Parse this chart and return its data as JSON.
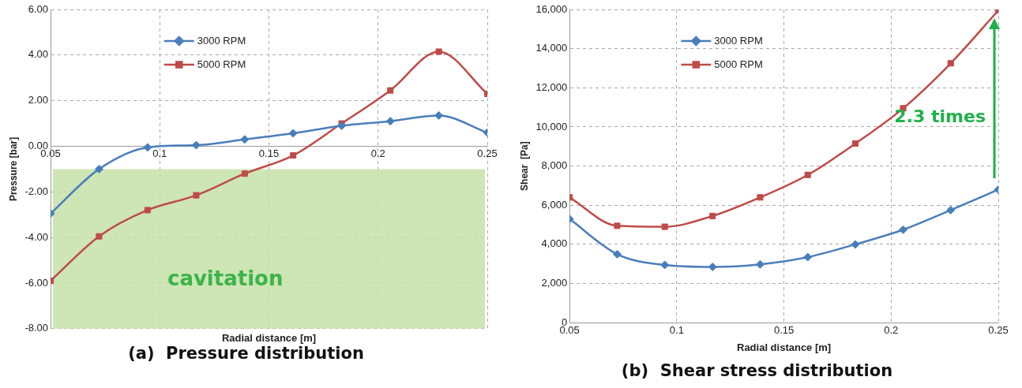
{
  "chart_data": [
    {
      "type": "line",
      "title": "(a)  Pressure distribution",
      "xlabel": "Radial distance [m]",
      "ylabel": "Pressure [bar]",
      "x": [
        0.05,
        0.0722,
        0.0944,
        0.1167,
        0.1389,
        0.1611,
        0.1833,
        0.2056,
        0.2278,
        0.25
      ],
      "series": [
        {
          "name": "3000 RPM",
          "color": "#4a7ebb",
          "marker": "diamond",
          "values": [
            -2.95,
            -1.0,
            -0.05,
            0.05,
            0.3,
            0.57,
            0.9,
            1.1,
            1.35,
            0.6
          ]
        },
        {
          "name": "5000 RPM",
          "color": "#be4b48",
          "marker": "square",
          "values": [
            -5.9,
            -3.95,
            -2.8,
            -2.15,
            -1.2,
            -0.4,
            1.0,
            2.45,
            4.15,
            2.3
          ]
        }
      ],
      "xlim": [
        0.05,
        0.25
      ],
      "xticks": [
        0.05,
        0.1,
        0.15,
        0.2,
        0.25
      ],
      "ylim": [
        -8,
        6
      ],
      "yticks": [
        {
          "value": -8,
          "label": "-8.00"
        },
        {
          "value": -6,
          "label": "-6.00"
        },
        {
          "value": -4,
          "label": "-4.00"
        },
        {
          "value": -2,
          "label": "-2.00"
        },
        {
          "value": 0,
          "label": "0.00"
        },
        {
          "value": 2,
          "label": "2.00"
        },
        {
          "value": 4,
          "label": "4.00"
        },
        {
          "value": 6,
          "label": "6.00"
        }
      ],
      "bands": [
        {
          "axis": "y",
          "from": -8,
          "to": -1,
          "label": "cavitation",
          "color": "#c6e0a8"
        }
      ],
      "grid": true,
      "legend": "top",
      "line_style": "solid"
    },
    {
      "type": "line",
      "title": "(b)  Shear stress distribution",
      "xlabel": "Radial distance [m]",
      "ylabel": "Shear  [Pa]",
      "x": [
        0.05,
        0.0722,
        0.0944,
        0.1167,
        0.1389,
        0.1611,
        0.1833,
        0.2056,
        0.2278,
        0.25
      ],
      "series": [
        {
          "name": "3000 RPM",
          "color": "#4a7ebb",
          "marker": "diamond",
          "values": [
            5300,
            3500,
            2950,
            2850,
            2980,
            3350,
            4000,
            4750,
            5750,
            6800
          ]
        },
        {
          "name": "5000 RPM",
          "color": "#be4b48",
          "marker": "square",
          "values": [
            6400,
            4950,
            4900,
            5450,
            6400,
            7550,
            9150,
            10950,
            13250,
            15950
          ]
        }
      ],
      "xlim": [
        0.05,
        0.25
      ],
      "xticks": [
        0.05,
        0.1,
        0.15,
        0.2,
        0.25
      ],
      "ylim": [
        0,
        16000
      ],
      "yticks": [
        0,
        {
          "value": 2000,
          "label": "2,000"
        },
        {
          "value": 4000,
          "label": "4,000"
        },
        {
          "value": 6000,
          "label": "6,000"
        },
        {
          "value": 8000,
          "label": "8,000"
        },
        {
          "value": 10000,
          "label": "10,000"
        },
        {
          "value": 12000,
          "label": "12,000"
        },
        {
          "value": 14000,
          "label": "14,000"
        },
        {
          "value": 16000,
          "label": "16,000"
        }
      ],
      "annotations": [
        "2.3 times"
      ],
      "grid": true,
      "legend": "top",
      "line_style": "solid"
    }
  ]
}
